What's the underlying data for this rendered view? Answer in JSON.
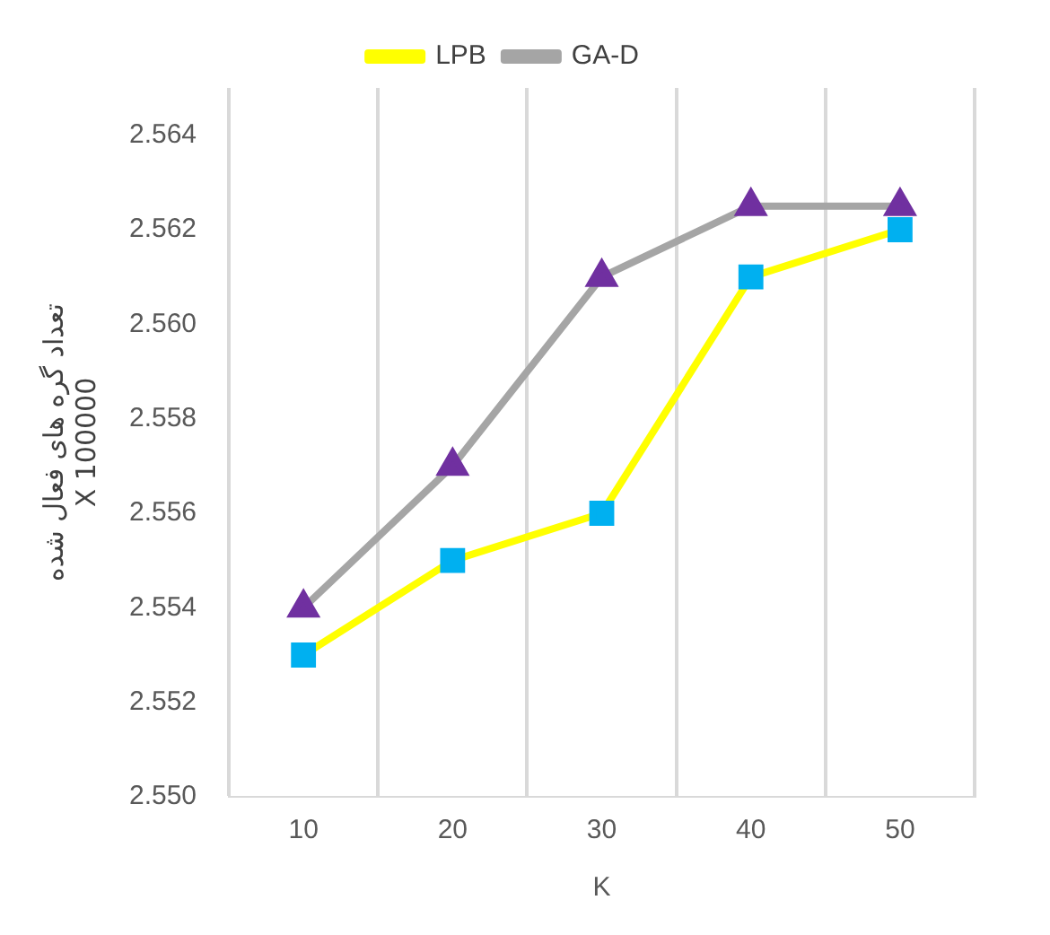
{
  "chart_data": {
    "type": "line",
    "xlabel": "K",
    "ylabel": "تعداد گره های فعال شده\nX 100000",
    "categories": [
      "10",
      "20",
      "30",
      "40",
      "50"
    ],
    "series": [
      {
        "name": "LPB",
        "color": "#ffff00",
        "values": [
          2.553,
          2.555,
          2.556,
          2.561,
          2.562
        ],
        "marker": "square"
      },
      {
        "name": "GA-D",
        "color": "#a5a5a5",
        "values": [
          2.554,
          2.557,
          2.561,
          2.5625,
          2.5625
        ],
        "marker": "triangle"
      }
    ],
    "ylim": [
      2.55,
      2.565
    ],
    "yticks": [
      {
        "value": 2.55,
        "label": "2.550"
      },
      {
        "value": 2.552,
        "label": "2.552"
      },
      {
        "value": 2.554,
        "label": "2.554"
      },
      {
        "value": 2.556,
        "label": "2.556"
      },
      {
        "value": 2.558,
        "label": "2.558"
      },
      {
        "value": 2.56,
        "label": "2.560"
      },
      {
        "value": 2.562,
        "label": "2.562"
      },
      {
        "value": 2.564,
        "label": "2.564"
      }
    ],
    "grid": "x",
    "legend": "top",
    "line_style": "solid"
  }
}
